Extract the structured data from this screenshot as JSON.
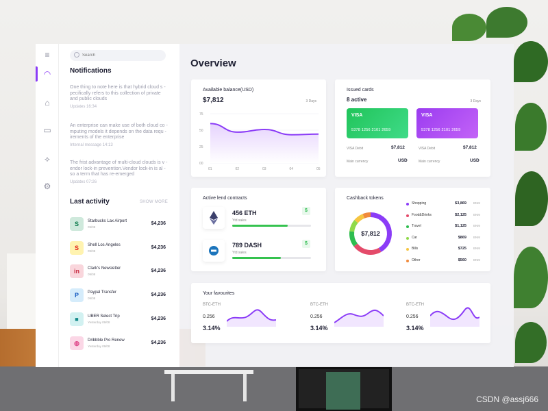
{
  "search": {
    "placeholder": "Search"
  },
  "notifications": {
    "title": "Notifications",
    "items": [
      {
        "text": "One thing to note here is that hybrid cloud s -pecifically refers to this collection of private and public clouds",
        "meta": "Updates 16:34"
      },
      {
        "text": "An enterprise can make use of both cloud co -mputing models it depends on the data requ -irements of the enterprise",
        "meta": "Internal message 14:13"
      },
      {
        "text": "The frist advantage of multi-cloud clouds is v -endor lock-in prevention.Vendor lock-in is al -so a term that has re-emerged",
        "meta": "Updates 07:26"
      }
    ]
  },
  "activity": {
    "title": "Last activity",
    "show_more": "SHOW MORE",
    "items": [
      {
        "name": "Starbucks Lax Airport",
        "date": "09/08",
        "amount": "$4,236",
        "glyph": "S"
      },
      {
        "name": "Shell Los Angeles",
        "date": "09/08",
        "amount": "$4,236",
        "glyph": "S"
      },
      {
        "name": "Clark's Newsletter",
        "date": "09/08",
        "amount": "$4,236",
        "glyph": "in"
      },
      {
        "name": "Paypal Transfer",
        "date": "09/08",
        "amount": "$4,236",
        "glyph": "P"
      },
      {
        "name": "UBER Select Trip",
        "date": "Yesterday 09/08",
        "amount": "$4,236",
        "glyph": "■"
      },
      {
        "name": "Dribbble Pro Renew",
        "date": "Yesterday 09/08",
        "amount": "$4,236",
        "glyph": "◍"
      }
    ]
  },
  "overview": {
    "title": "Overview"
  },
  "balance": {
    "title": "Available balance(USD)",
    "amount": "$7,812",
    "period": "3 Days",
    "y_ticks": [
      "75",
      "50",
      "25",
      "00"
    ],
    "x_ticks": [
      "01",
      "02",
      "03",
      "04",
      "05"
    ]
  },
  "cards": {
    "title": "Issued cards",
    "active": "8 active",
    "period": "3 Days",
    "items": [
      {
        "brand": "VISA",
        "number": "5378  1256  2101  2659",
        "label": "VISA Debit",
        "amount": "$7,812",
        "currency_label": "Main currency",
        "currency": "USD",
        "color_from": "#21c45a",
        "color_to": "#3fdb88"
      },
      {
        "brand": "VISA",
        "number": "5378  1256  2101  2659",
        "label": "VISA Debit",
        "amount": "$7,812",
        "currency_label": "Main currency",
        "currency": "USD",
        "color_from": "#9b3cf0",
        "color_to": "#c363f7"
      }
    ]
  },
  "lend": {
    "title": "Active lend contracts",
    "items": [
      {
        "amount": "456 ETH",
        "sub": "Ytd sales",
        "dollar": "$",
        "progress": 0.7
      },
      {
        "amount": "789 DASH",
        "sub": "Ytd sales",
        "dollar": "$",
        "progress": 0.62
      }
    ]
  },
  "cashback": {
    "title": "Cashback tokens",
    "center": "$7,812",
    "items": [
      {
        "name": "Shopping",
        "value": "$3,869",
        "unit": "BNM",
        "color": "#8b3cf7"
      },
      {
        "name": "Food&Drinks",
        "value": "$2,125",
        "unit": "BNM",
        "color": "#e44b6a"
      },
      {
        "name": "Travel",
        "value": "$1,125",
        "unit": "BNM",
        "color": "#2ebd4f"
      },
      {
        "name": "Car",
        "value": "$869",
        "unit": "BNM",
        "color": "#8fd94a"
      },
      {
        "name": "Bills",
        "value": "$725",
        "unit": "BNM",
        "color": "#f5c542"
      },
      {
        "name": "Other",
        "value": "$560",
        "unit": "BNM",
        "color": "#f08a3c"
      }
    ]
  },
  "favourites": {
    "title": "Your favourites",
    "items": [
      {
        "pair": "BTC-ETH",
        "value": "0.256",
        "pct": "3.14%"
      },
      {
        "pair": "BTC-ETH",
        "value": "0.256",
        "pct": "3.14%"
      },
      {
        "pair": "BTC-ETH",
        "value": "0.256",
        "pct": "3.14%"
      }
    ]
  },
  "chart_data": {
    "type": "area",
    "x": [
      "01",
      "02",
      "03",
      "04",
      "05"
    ],
    "values": [
      60,
      47,
      51,
      43,
      44
    ],
    "ylim": [
      0,
      75
    ],
    "color": "#8b3cf7",
    "grid": true
  },
  "watermark": "CSDN @assj666"
}
